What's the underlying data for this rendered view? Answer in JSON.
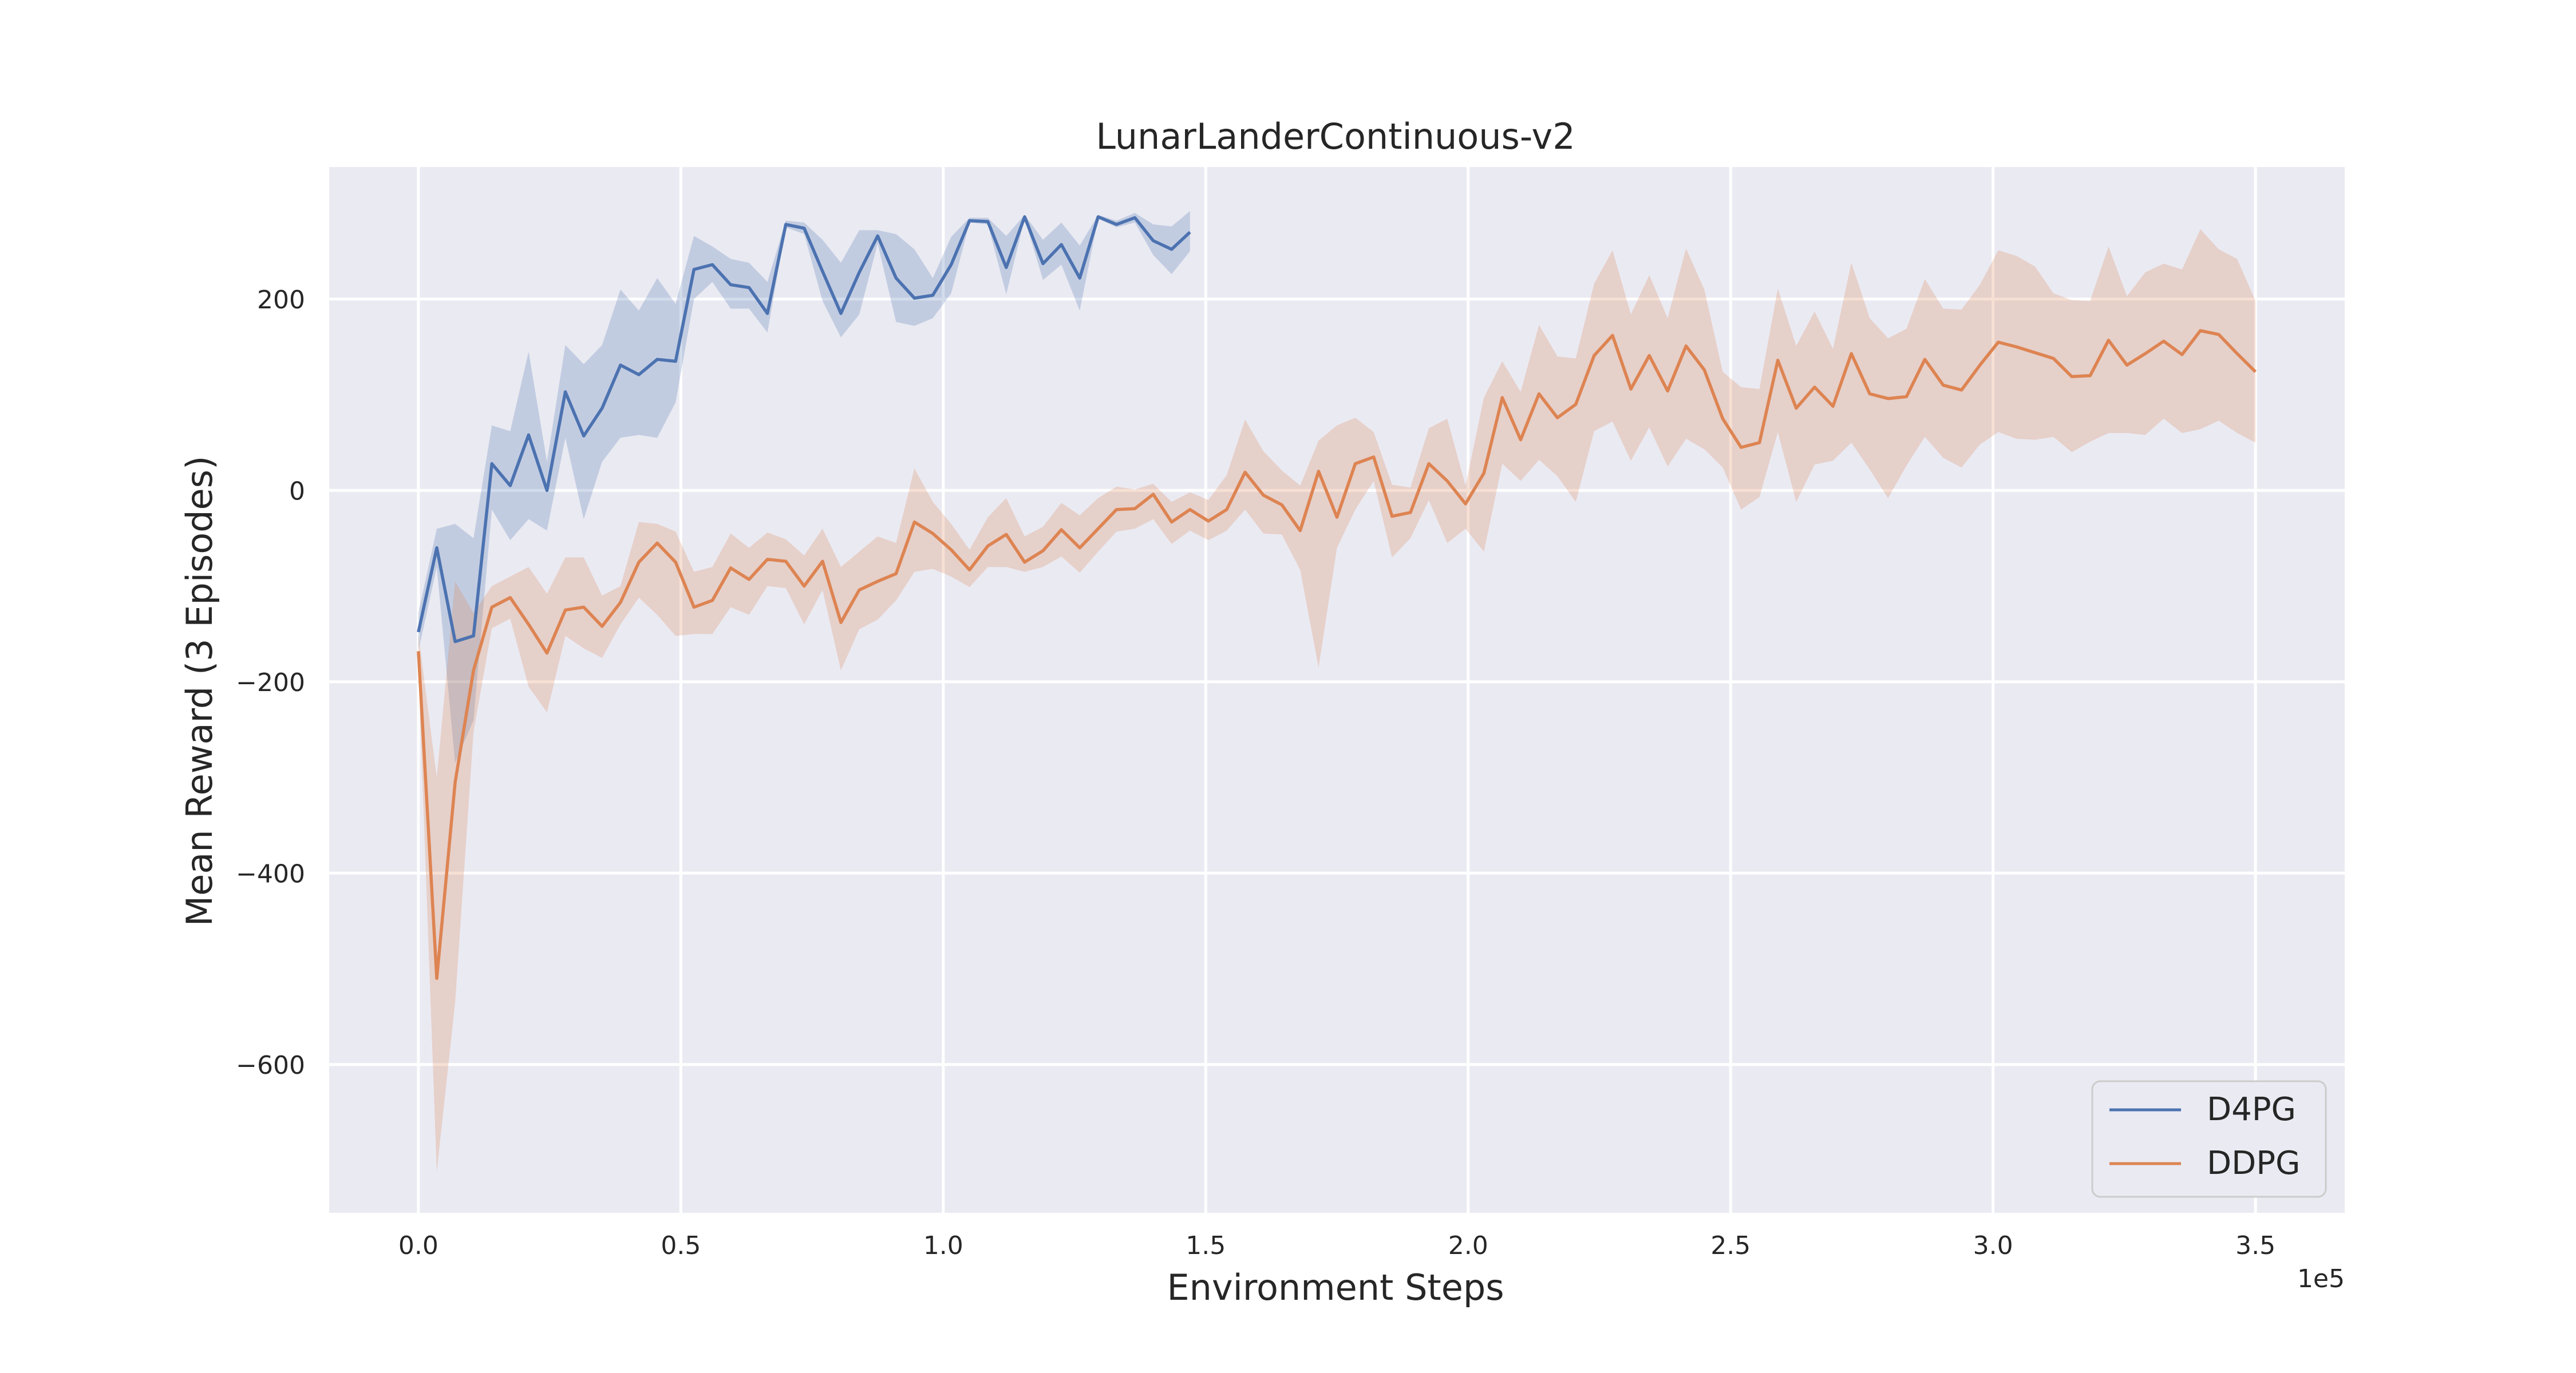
{
  "chart_data": {
    "type": "line",
    "title": "LunarLanderContinuous-v2",
    "xlabel": "Environment Steps",
    "ylabel": "Mean Reward (3 Episodes)",
    "x_offset_label": "1e5",
    "xlim": [
      -0.17,
      3.67
    ],
    "ylim": [
      -755,
      338
    ],
    "xticks": [
      0.0,
      0.5,
      1.0,
      1.5,
      2.0,
      2.5,
      3.0,
      3.5
    ],
    "xtick_labels": [
      "0.0",
      "0.5",
      "1.0",
      "1.5",
      "2.0",
      "2.5",
      "3.0",
      "3.5"
    ],
    "yticks": [
      -600,
      -400,
      -200,
      0,
      200
    ],
    "ytick_labels": [
      "−600",
      "−400",
      "−200",
      "0",
      "200"
    ],
    "grid": true,
    "legend_position": "bottom-right",
    "colors": {
      "background": "#eaeaf2",
      "grid": "#ffffff",
      "D4PG": "#4c72b0",
      "DDPG": "#dd8452"
    },
    "series": [
      {
        "name": "D4PG",
        "color": "#4c72b0",
        "x": [
          0.0,
          0.035,
          0.07,
          0.105,
          0.14,
          0.175,
          0.21,
          0.245,
          0.28,
          0.315,
          0.35,
          0.385,
          0.42,
          0.455,
          0.49,
          0.525,
          0.56,
          0.595,
          0.63,
          0.665,
          0.7,
          0.735,
          0.77,
          0.805,
          0.84,
          0.875,
          0.91,
          0.945,
          0.98,
          1.015,
          1.05,
          1.085,
          1.12,
          1.155,
          1.19,
          1.225,
          1.26,
          1.295,
          1.33,
          1.365,
          1.4,
          1.435,
          1.47
        ],
        "y": [
          -148,
          -60,
          -158,
          -152,
          28,
          5,
          58,
          0,
          103,
          57,
          86,
          131,
          121,
          137,
          135,
          231,
          236,
          215,
          212,
          185,
          278,
          274,
          229,
          185,
          228,
          266,
          222,
          201,
          204,
          236,
          282,
          281,
          233,
          286,
          237,
          257,
          222,
          286,
          278,
          285,
          261,
          252,
          270
        ],
        "upper": [
          -128,
          -40,
          -35,
          -50,
          68,
          62,
          145,
          30,
          152,
          132,
          152,
          210,
          188,
          222,
          195,
          266,
          255,
          242,
          238,
          218,
          282,
          280,
          262,
          238,
          272,
          272,
          268,
          252,
          222,
          265,
          285,
          285,
          266,
          288,
          262,
          280,
          256,
          288,
          282,
          290,
          278,
          276,
          292
        ],
        "lower": [
          -168,
          -80,
          -285,
          -240,
          -20,
          -52,
          -30,
          -42,
          55,
          -30,
          30,
          55,
          58,
          55,
          92,
          200,
          218,
          190,
          190,
          165,
          275,
          268,
          198,
          160,
          184,
          258,
          176,
          172,
          180,
          206,
          280,
          278,
          205,
          284,
          220,
          236,
          188,
          284,
          275,
          280,
          246,
          226,
          250
        ]
      },
      {
        "name": "DDPG",
        "color": "#dd8452",
        "x": [
          0.0,
          0.035,
          0.07,
          0.105,
          0.14,
          0.175,
          0.21,
          0.245,
          0.28,
          0.315,
          0.35,
          0.385,
          0.42,
          0.455,
          0.49,
          0.525,
          0.56,
          0.595,
          0.63,
          0.665,
          0.7,
          0.735,
          0.77,
          0.805,
          0.84,
          0.875,
          0.91,
          0.945,
          0.98,
          1.015,
          1.05,
          1.085,
          1.12,
          1.155,
          1.19,
          1.225,
          1.26,
          1.295,
          1.33,
          1.365,
          1.4,
          1.435,
          1.47,
          1.505,
          1.54,
          1.575,
          1.61,
          1.645,
          1.68,
          1.715,
          1.75,
          1.785,
          1.82,
          1.855,
          1.89,
          1.925,
          1.96,
          1.995,
          2.03,
          2.065,
          2.1,
          2.135,
          2.17,
          2.205,
          2.24,
          2.275,
          2.31,
          2.345,
          2.38,
          2.415,
          2.45,
          2.485,
          2.52,
          2.555,
          2.59,
          2.625,
          2.66,
          2.695,
          2.73,
          2.765,
          2.8,
          2.835,
          2.87,
          2.905,
          2.94,
          2.975,
          3.01,
          3.045,
          3.08,
          3.115,
          3.15,
          3.185,
          3.22,
          3.255,
          3.29,
          3.325,
          3.36,
          3.395,
          3.43,
          3.465,
          3.5
        ],
        "y": [
          -168,
          -510,
          -305,
          -188,
          -122,
          -112,
          -140,
          -170,
          -125,
          -122,
          -142,
          -117,
          -75,
          -55,
          -75,
          -122,
          -115,
          -81,
          -93,
          -72,
          -74,
          -100,
          -74,
          -138,
          -104,
          -95,
          -87,
          -33,
          -45,
          -62,
          -83,
          -58,
          -46,
          -75,
          -63,
          -41,
          -60,
          -40,
          -20,
          -19,
          -4,
          -33,
          -20,
          -32,
          -20,
          19,
          -5,
          -15,
          -42,
          20,
          -28,
          28,
          35,
          -27,
          -23,
          28,
          10,
          -14,
          18,
          97,
          53,
          101,
          76,
          90,
          141,
          162,
          106,
          141,
          104,
          151,
          126,
          75,
          45,
          50,
          136,
          86,
          108,
          88,
          143,
          101,
          96,
          98,
          137,
          110,
          105,
          131,
          155,
          150,
          144,
          138,
          119,
          120,
          157,
          131,
          143,
          156,
          142,
          167,
          163,
          143,
          124
        ],
        "upper": [
          -150,
          -300,
          -95,
          -128,
          -100,
          -90,
          -80,
          -108,
          -70,
          -70,
          -110,
          -100,
          -33,
          -35,
          -43,
          -85,
          -80,
          -45,
          -60,
          -44,
          -51,
          -68,
          -40,
          -80,
          -64,
          -48,
          -55,
          23,
          -12,
          -35,
          -62,
          -28,
          -8,
          -48,
          -38,
          -13,
          -26,
          -8,
          4,
          1,
          7,
          -12,
          -2,
          -10,
          16,
          74,
          41,
          21,
          5,
          52,
          68,
          76,
          61,
          6,
          3,
          65,
          75,
          5,
          97,
          135,
          103,
          173,
          140,
          138,
          216,
          251,
          184,
          225,
          180,
          253,
          210,
          124,
          108,
          106,
          211,
          151,
          187,
          148,
          238,
          180,
          159,
          169,
          221,
          190,
          189,
          215,
          251,
          245,
          234,
          206,
          199,
          198,
          255,
          203,
          228,
          237,
          231,
          273,
          252,
          242,
          198
        ],
        "lower": [
          -186,
          -712,
          -535,
          -252,
          -144,
          -134,
          -205,
          -232,
          -152,
          -165,
          -175,
          -140,
          -112,
          -130,
          -152,
          -150,
          -150,
          -122,
          -130,
          -100,
          -102,
          -140,
          -104,
          -188,
          -145,
          -135,
          -115,
          -85,
          -82,
          -90,
          -101,
          -80,
          -80,
          -85,
          -80,
          -69,
          -86,
          -64,
          -43,
          -40,
          -30,
          -56,
          -42,
          -52,
          -42,
          -20,
          -45,
          -46,
          -83,
          -185,
          -60,
          -20,
          10,
          -70,
          -50,
          -10,
          -55,
          -40,
          -64,
          28,
          10,
          32,
          15,
          -12,
          62,
          72,
          31,
          66,
          25,
          54,
          43,
          24,
          -20,
          -7,
          61,
          -12,
          27,
          31,
          50,
          22,
          -8,
          26,
          56,
          34,
          24,
          48,
          61,
          54,
          53,
          56,
          40,
          51,
          60,
          60,
          58,
          75,
          60,
          64,
          73,
          60,
          50
        ]
      }
    ]
  }
}
